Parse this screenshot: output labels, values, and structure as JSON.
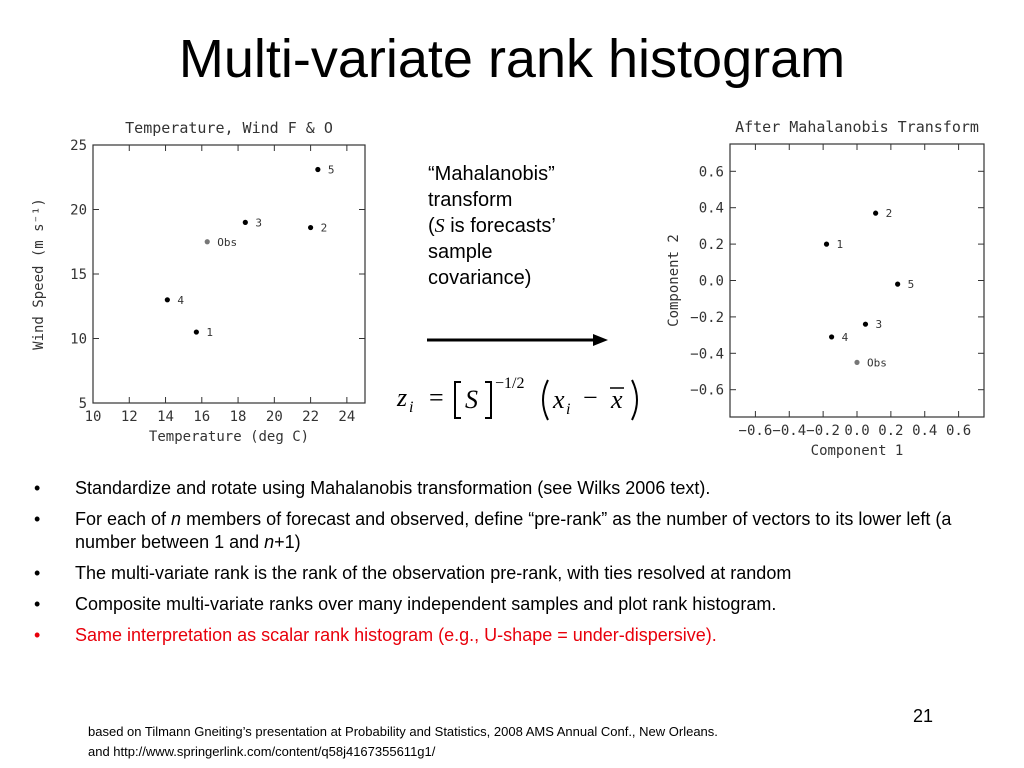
{
  "slide": {
    "title": "Multi-variate rank histogram",
    "number": "21"
  },
  "transform_note": {
    "line1": "“Mahalanobis”",
    "line2": "transform",
    "line3_open": "(",
    "line3_s": "S",
    "line3_rest": " is forecasts’",
    "line4": "sample",
    "line5": "covariance)"
  },
  "formula": {
    "z": "z",
    "i": "i",
    "eq": "=",
    "S": "S",
    "exp": "−1/2",
    "x": "x",
    "minus": "−",
    "xbar": "x"
  },
  "bullets": [
    {
      "text": "Standardize and rotate using Mahalanobis transformation (see Wilks 2006 text).",
      "color": "#000000"
    },
    {
      "text_pre": "For each of ",
      "text_n": "n",
      "text_post": " members of forecast and observed, define “pre-rank” as the number of vectors to its lower left (a number between 1 and ",
      "text_n2": "n",
      "text_end": "+1)",
      "color": "#000000"
    },
    {
      "text": "The multi-variate rank is the rank of the observation pre-rank, with ties resolved at random",
      "color": "#000000"
    },
    {
      "text": "Composite multi-variate ranks over many independent samples and plot rank histogram.",
      "color": "#000000"
    },
    {
      "text": "Same interpretation as scalar rank histogram (e.g., U-shape = under-dispersive).",
      "color": "#e8000b"
    }
  ],
  "bullet_symbol": "•",
  "footnote": {
    "line1": "based on Tilmann Gneiting’s presentation at Probability and Statistics, 2008 AMS Annual Conf., New Orleans.",
    "line2": "and http://www.springerlink.com/content/q58j4167355611g1/"
  },
  "chart_data": [
    {
      "type": "scatter",
      "title": "Temperature, Wind F & O",
      "xlabel": "Temperature (deg C)",
      "ylabel": "Wind Speed (m s⁻¹)",
      "xlim": [
        10,
        25
      ],
      "ylim": [
        5,
        25
      ],
      "xticks": [
        "10",
        "12",
        "14",
        "16",
        "18",
        "20",
        "22",
        "24"
      ],
      "yticks": [
        "5",
        "10",
        "15",
        "20",
        "25"
      ],
      "points": [
        {
          "label": "1",
          "x": 15.7,
          "y": 10.5,
          "color": "#000000"
        },
        {
          "label": "2",
          "x": 22.0,
          "y": 18.6,
          "color": "#000000"
        },
        {
          "label": "3",
          "x": 18.4,
          "y": 19.0,
          "color": "#000000"
        },
        {
          "label": "4",
          "x": 14.1,
          "y": 13.0,
          "color": "#000000"
        },
        {
          "label": "5",
          "x": 22.4,
          "y": 23.1,
          "color": "#000000"
        },
        {
          "label": "Obs",
          "x": 16.3,
          "y": 17.5,
          "color": "#777777"
        }
      ]
    },
    {
      "type": "scatter",
      "title": "After Mahalanobis Transform",
      "xlabel": "Component 1",
      "ylabel": "Component 2",
      "xlim": [
        -0.75,
        0.75
      ],
      "ylim": [
        -0.75,
        0.75
      ],
      "xticks": [
        "−0.6",
        "−0.4",
        "−0.2",
        "0.0",
        "0.2",
        "0.4",
        "0.6"
      ],
      "yticks": [
        "−0.6",
        "−0.4",
        "−0.2",
        "0.0",
        "0.2",
        "0.4",
        "0.6"
      ],
      "points": [
        {
          "label": "1",
          "x": -0.18,
          "y": 0.2,
          "color": "#000000"
        },
        {
          "label": "2",
          "x": 0.11,
          "y": 0.37,
          "color": "#000000"
        },
        {
          "label": "3",
          "x": 0.05,
          "y": -0.24,
          "color": "#000000"
        },
        {
          "label": "4",
          "x": -0.15,
          "y": -0.31,
          "color": "#000000"
        },
        {
          "label": "5",
          "x": 0.24,
          "y": -0.02,
          "color": "#000000"
        },
        {
          "label": "Obs",
          "x": 0.0,
          "y": -0.45,
          "color": "#777777"
        }
      ]
    }
  ]
}
